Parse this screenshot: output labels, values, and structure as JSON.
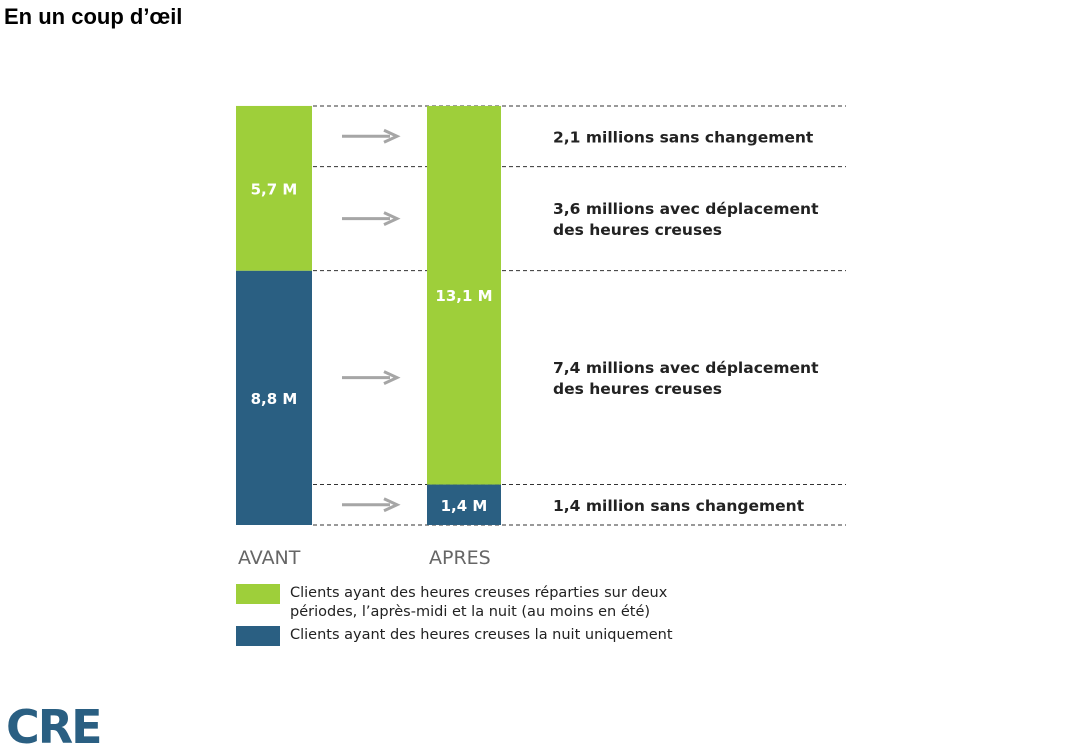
{
  "title": "En un coup d’œil",
  "logo_text": "CRE",
  "colors": {
    "green": "#9ecf3a",
    "blue": "#2a5f82",
    "arrow": "#a6a6a6",
    "label_dark": "#222222"
  },
  "chart_data": {
    "type": "bar",
    "stacked": true,
    "categories": [
      "AVANT",
      "APRES"
    ],
    "unit": "M",
    "series": [
      {
        "name": "Clients ayant des heures creuses la nuit uniquement",
        "color_key": "blue",
        "values": [
          8.8,
          1.4
        ],
        "labels": [
          "8,8 M",
          "1,4 M"
        ]
      },
      {
        "name": "Clients ayant des heures creuses réparties sur deux périodes, l’après-midi et la nuit (au moins en été)",
        "color_key": "green",
        "values": [
          5.7,
          13.1
        ],
        "labels": [
          "5,7 M",
          "13,1 M"
        ]
      }
    ],
    "transitions": [
      {
        "value": 2.1,
        "text": [
          "2,1 millions sans changement"
        ]
      },
      {
        "value": 3.6,
        "text": [
          "3,6 millions avec déplacement",
          "des heures creuses"
        ]
      },
      {
        "value": 7.4,
        "text": [
          "7,4 millions avec déplacement",
          "des heures creuses"
        ]
      },
      {
        "value": 1.4,
        "text": [
          "1,4 million sans changement"
        ]
      }
    ],
    "legend": {
      "green": "Clients ayant des heures creuses réparties sur deux périodes, l’après-midi et la nuit (au moins en été)",
      "blue": "Clients ayant des heures creuses la nuit uniquement"
    },
    "legend_position": "bottom-left"
  }
}
